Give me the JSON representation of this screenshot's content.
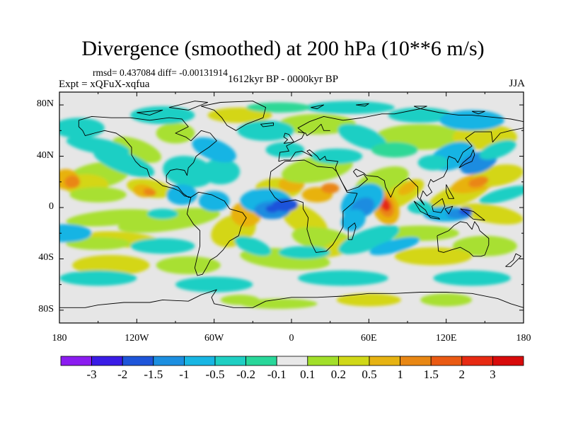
{
  "title": "Divergence (smoothed) at 200 hPa (10**6 m/s)",
  "stats": "rmsd= 0.437084  diff= -0.00131914",
  "expt": "Expt = xQFuX-xqfua",
  "period": "1612kyr BP - 0000kyr BP",
  "season": "JJA",
  "map": {
    "projection": "cylindrical equidistant",
    "lon_range": [
      -180,
      180
    ],
    "lat_range": [
      -90,
      90
    ],
    "y_tick_labels": [
      "80N",
      "40N",
      "0",
      "40S",
      "80S"
    ],
    "y_tick_values": [
      80,
      40,
      0,
      -40,
      -80
    ],
    "x_tick_labels": [
      "180",
      "120W",
      "60W",
      "0",
      "60E",
      "120E",
      "180"
    ],
    "x_tick_values": [
      -180,
      -120,
      -60,
      0,
      60,
      120,
      180
    ]
  },
  "colorbar": {
    "labels": [
      "-3",
      "-2",
      "-1.5",
      "-1",
      "-0.5",
      "-0.2",
      "-0.1",
      "0.1",
      "0.2",
      "0.5",
      "1",
      "1.5",
      "2",
      "3"
    ],
    "colors": [
      "#8b1cf0",
      "#3a1ce6",
      "#1e55d9",
      "#1c8fe0",
      "#18b6e3",
      "#1fcfc3",
      "#29d79a",
      "#e8e8e8",
      "#a2df2a",
      "#d0d818",
      "#e6b312",
      "#e88714",
      "#ea5a13",
      "#e72a12",
      "#d80b0b"
    ]
  },
  "field_colors": {
    "neutral": "#e6e6e6",
    "c1p": "#a8e030",
    "c2p": "#d4d616",
    "c3p": "#e8b210",
    "c4p": "#ea8612",
    "c5p": "#e85a14",
    "c6p": "#e42a12",
    "c1n": "#2fd896",
    "c2n": "#1fcfc4",
    "c3n": "#18b4e4",
    "c4n": "#1a8ce0",
    "c5n": "#1c52da",
    "c6n": "#3a1ce6"
  }
}
